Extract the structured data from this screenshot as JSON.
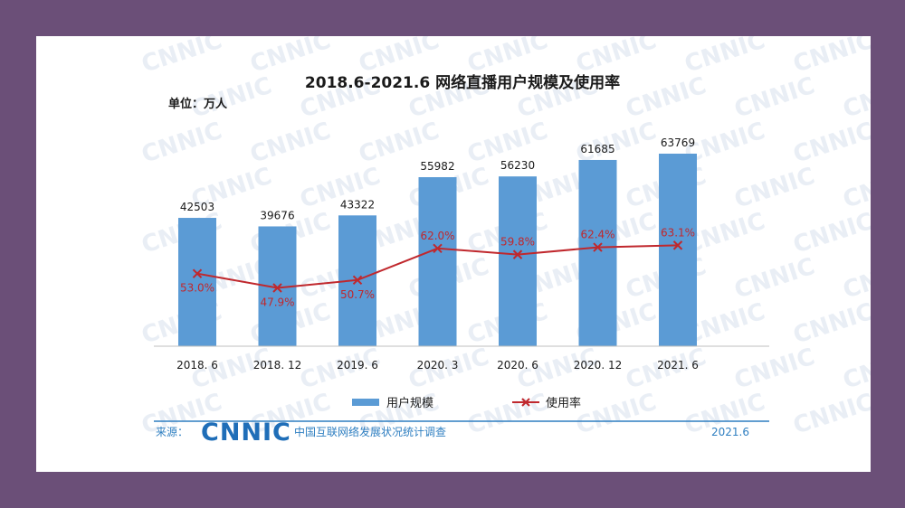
{
  "chart_data": {
    "type": "bar",
    "title": "2018.6-2021.6 网络直播用户规模及使用率",
    "unit_label": "单位：万人",
    "categories": [
      "2018. 6",
      "2018. 12",
      "2019. 6",
      "2020. 3",
      "2020. 6",
      "2020. 12",
      "2021. 6"
    ],
    "series": [
      {
        "name": "用户规模",
        "type": "bar",
        "values": [
          42503,
          39676,
          43322,
          55982,
          56230,
          61685,
          63769
        ],
        "labels": [
          "42503",
          "39676",
          "43322",
          "55982",
          "56230",
          "61685",
          "63769"
        ],
        "color": "#5b9bd5"
      },
      {
        "name": "使用率",
        "type": "line",
        "values": [
          53.0,
          47.9,
          50.7,
          62.0,
          59.8,
          62.4,
          63.1
        ],
        "labels": [
          "53.0%",
          "47.9%",
          "50.7%",
          "62.0%",
          "59.8%",
          "62.4%",
          "63.1%"
        ],
        "color": "#c0282d"
      }
    ],
    "legend_position": "bottom",
    "grid": false
  },
  "watermark": "CNNIC",
  "footer": {
    "source_label": "来源：",
    "logo_text": "CNNIC",
    "survey_name": "中国互联网络发展状况统计调查",
    "date": "2021.6"
  },
  "colors": {
    "background": "#6b4f78",
    "card": "#ffffff",
    "bar": "#5b9bd5",
    "line": "#c0282d",
    "footer_line": "#2f7fc1"
  }
}
